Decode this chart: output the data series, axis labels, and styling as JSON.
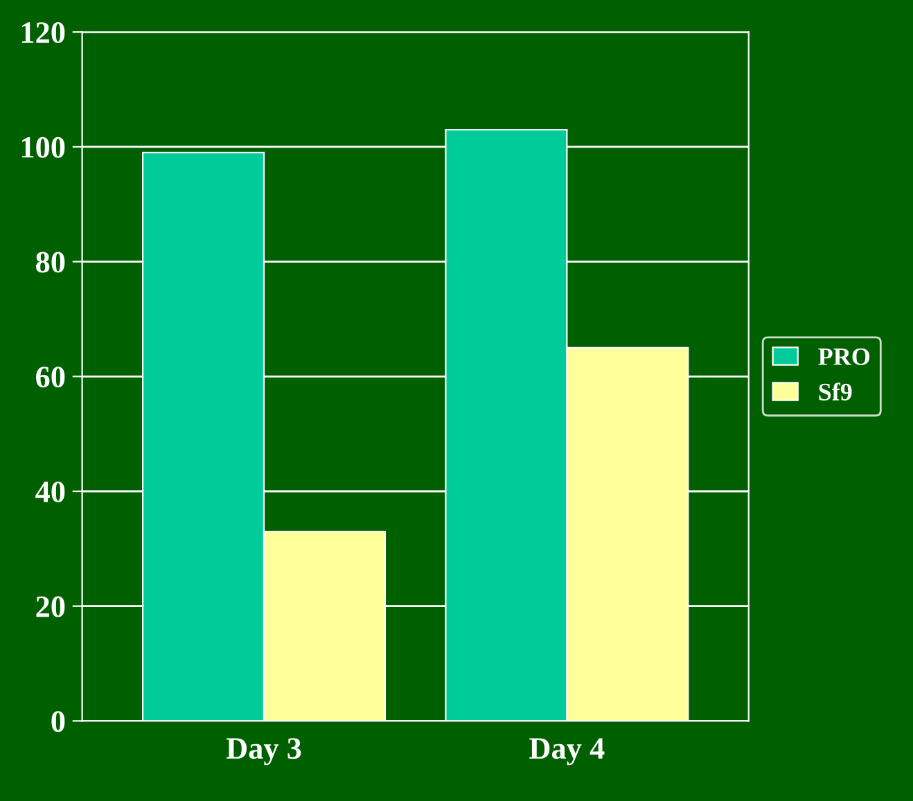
{
  "chart_data": {
    "type": "bar",
    "categories": [
      "Day 3",
      "Day 4"
    ],
    "series": [
      {
        "name": "PRO",
        "color": "#00cc99",
        "values": [
          99,
          103
        ]
      },
      {
        "name": "Sf9",
        "color": "#ffff99",
        "values": [
          33,
          65
        ]
      }
    ],
    "ylim": [
      0,
      120
    ],
    "yticks": [
      0,
      20,
      40,
      60,
      80,
      100,
      120
    ],
    "grid": "y",
    "legend": "right"
  }
}
